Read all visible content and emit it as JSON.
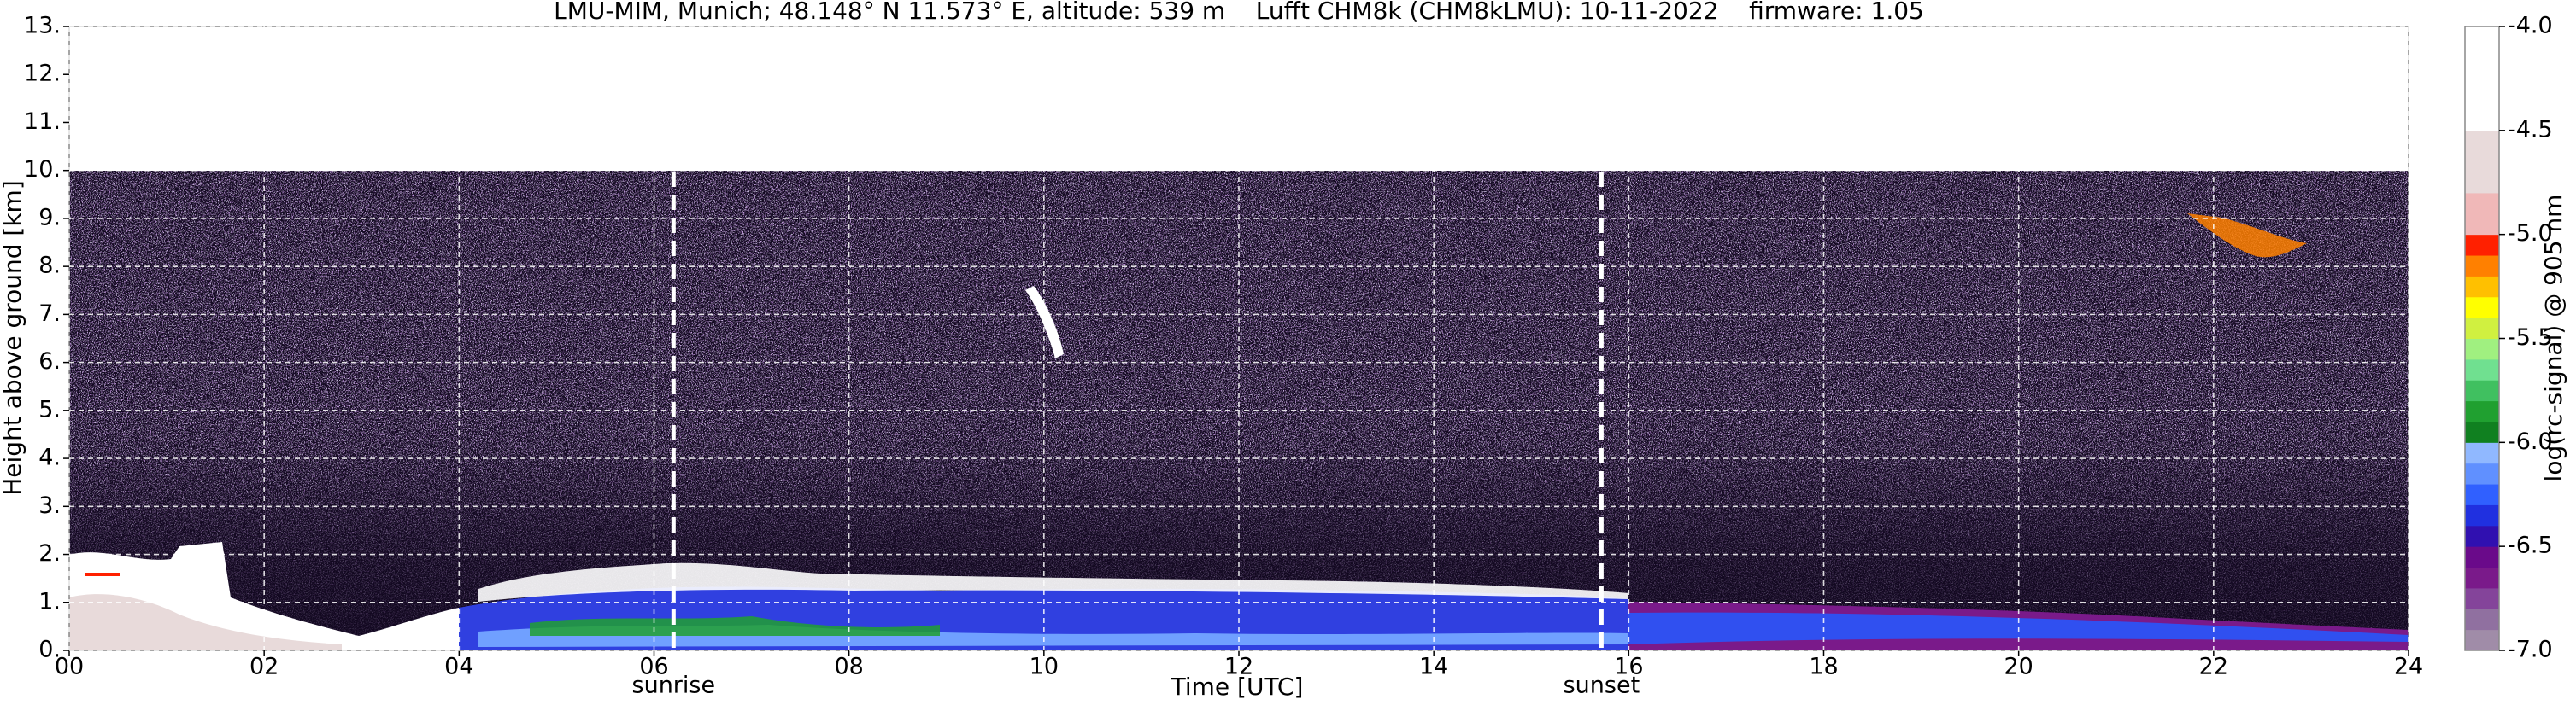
{
  "chart_data": {
    "type": "heatmap",
    "title": "LMU-MIM, Munich; 48.148° N 11.573° E, altitude: 539 m    Lufft CHM8k (CHM8kLMU): 10-11-2022    firmware: 1.05",
    "x_label": "Time [UTC]",
    "y_label": "Height above ground [km]",
    "xlim": [
      0,
      24
    ],
    "xticks": [
      {
        "value": 0,
        "label": "00"
      },
      {
        "value": 2,
        "label": "02"
      },
      {
        "value": 4,
        "label": "04"
      },
      {
        "value": 6,
        "label": "06"
      },
      {
        "value": 8,
        "label": "08"
      },
      {
        "value": 10,
        "label": "10"
      },
      {
        "value": 12,
        "label": "12"
      },
      {
        "value": 14,
        "label": "14"
      },
      {
        "value": 16,
        "label": "16"
      },
      {
        "value": 18,
        "label": "18"
      },
      {
        "value": 20,
        "label": "20"
      },
      {
        "value": 22,
        "label": "22"
      },
      {
        "value": 24,
        "label": "24"
      }
    ],
    "ylim": [
      0,
      13
    ],
    "yticks": [
      {
        "value": 0,
        "label": "0."
      },
      {
        "value": 1,
        "label": "1."
      },
      {
        "value": 2,
        "label": "2."
      },
      {
        "value": 3,
        "label": "3."
      },
      {
        "value": 4,
        "label": "4."
      },
      {
        "value": 5,
        "label": "5."
      },
      {
        "value": 6,
        "label": "6."
      },
      {
        "value": 7,
        "label": "7."
      },
      {
        "value": 8,
        "label": "8."
      },
      {
        "value": 9,
        "label": "9."
      },
      {
        "value": 10,
        "label": "10."
      },
      {
        "value": 11,
        "label": "11."
      },
      {
        "value": 12,
        "label": "12."
      },
      {
        "value": 13,
        "label": "13."
      }
    ],
    "grid": true,
    "vlines": [
      {
        "x": 6.2,
        "label": "sunrise"
      },
      {
        "x": 15.72,
        "label": "sunset"
      }
    ],
    "colorbar": {
      "label": "log(rc-signal) @ 905 nm",
      "lim": [
        -7.0,
        -4.0
      ],
      "ticks": [
        {
          "value": -4.0,
          "label": "-4.0"
        },
        {
          "value": -4.5,
          "label": "-4.5"
        },
        {
          "value": -5.0,
          "label": "-5.0"
        },
        {
          "value": -5.5,
          "label": "-5.5"
        },
        {
          "value": -6.0,
          "label": "-6.0"
        },
        {
          "value": -6.5,
          "label": "-6.5"
        },
        {
          "value": -7.0,
          "label": "-7.0"
        }
      ],
      "colors": [
        "#a08ca8",
        "#9070a0",
        "#84449a",
        "#7a1a8a",
        "#6a0a8a",
        "#3010b0",
        "#2030e0",
        "#3060ff",
        "#6090ff",
        "#90b8ff",
        "#108020",
        "#20a030",
        "#40c060",
        "#70e090",
        "#a0f080",
        "#d0f040",
        "#ffff00",
        "#ffc000",
        "#ff8000",
        "#ff2000",
        "#f0b8b8",
        "#f0b8b8",
        "#e8dada",
        "#e8dada",
        "#e8dada",
        "#ffffff",
        "#ffffff",
        "#ffffff",
        "#ffffff",
        "#ffffff"
      ]
    }
  }
}
